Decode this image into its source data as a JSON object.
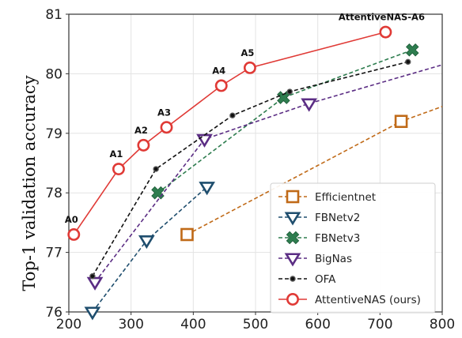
{
  "chart_data": {
    "type": "line",
    "title": "",
    "xlabel": "",
    "ylabel": "Top-1 validation accuracy",
    "xlim": [
      200,
      800
    ],
    "ylim": [
      76,
      81
    ],
    "xticks": [
      200,
      300,
      400,
      500,
      600,
      700,
      800
    ],
    "yticks": [
      76,
      77,
      78,
      79,
      80,
      81
    ],
    "grid": true,
    "legend_position": "bottom-right",
    "series": [
      {
        "name": "Efficientnet",
        "color": "#c06a18",
        "marker": "square",
        "dash": true,
        "points": [
          [
            390,
            77.3
          ],
          [
            734,
            79.2
          ],
          [
            800,
            79.45
          ]
        ],
        "marker_count": 2
      },
      {
        "name": "FBNetv2",
        "color": "#1f4e6e",
        "marker": "triangle-down",
        "dash": true,
        "points": [
          [
            238,
            76.0
          ],
          [
            325,
            77.2
          ],
          [
            422,
            78.1
          ]
        ],
        "marker_count": 3
      },
      {
        "name": "FBNetv3",
        "color": "#2e7d4f",
        "marker": "x",
        "dash": true,
        "points": [
          [
            343,
            78.0
          ],
          [
            545,
            79.6
          ],
          [
            752,
            80.4
          ]
        ],
        "marker_count": 3
      },
      {
        "name": "BigNas",
        "color": "#5b2d84",
        "marker": "triangle-down",
        "dash": true,
        "points": [
          [
            242,
            76.5
          ],
          [
            418,
            78.9
          ],
          [
            586,
            79.5
          ],
          [
            800,
            80.15
          ]
        ],
        "marker_count": 3
      },
      {
        "name": "OFA",
        "color": "#111111",
        "marker": "dot",
        "dash": true,
        "points": [
          [
            238,
            76.6
          ],
          [
            340,
            78.4
          ],
          [
            463,
            79.3
          ],
          [
            555,
            79.7
          ],
          [
            745,
            80.2
          ]
        ],
        "marker_count": 5
      },
      {
        "name": "AttentiveNAS (ours)",
        "color": "#e03a36",
        "marker": "circle",
        "dash": false,
        "points": [
          [
            208,
            77.3
          ],
          [
            280,
            78.4
          ],
          [
            320,
            78.8
          ],
          [
            357,
            79.1
          ],
          [
            445,
            79.8
          ],
          [
            491,
            80.1
          ],
          [
            709,
            80.7
          ]
        ],
        "marker_count": 7
      }
    ],
    "annotations": [
      {
        "text": "A0",
        "x": 208,
        "y": 77.3
      },
      {
        "text": "A1",
        "x": 280,
        "y": 78.4
      },
      {
        "text": "A2",
        "x": 320,
        "y": 78.8
      },
      {
        "text": "A3",
        "x": 357,
        "y": 79.1
      },
      {
        "text": "A4",
        "x": 445,
        "y": 79.8
      },
      {
        "text": "A5",
        "x": 491,
        "y": 80.1
      },
      {
        "text": "AttentiveNAS-A6",
        "x": 709,
        "y": 80.7
      }
    ]
  }
}
